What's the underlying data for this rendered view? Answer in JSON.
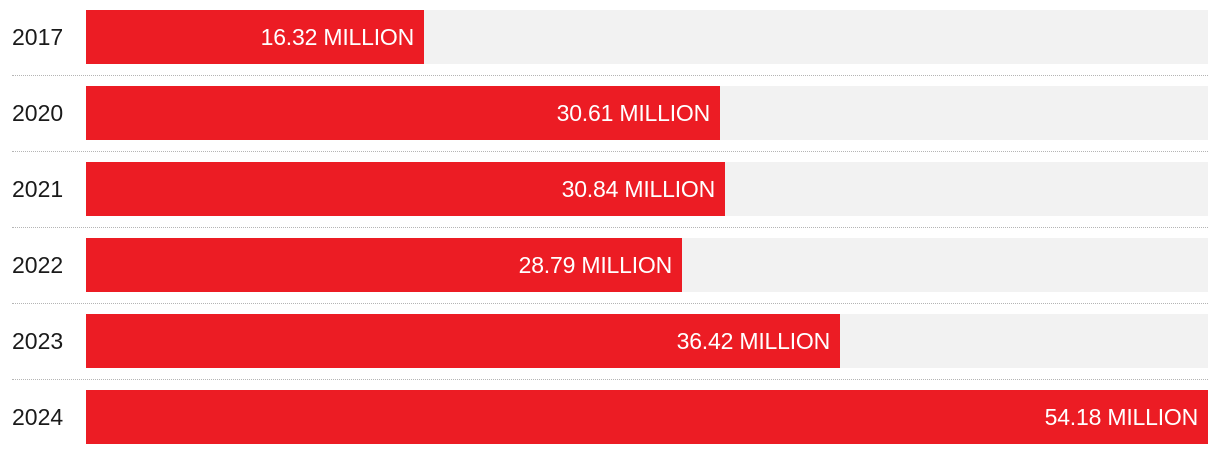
{
  "colors": {
    "bar": "#ec1c24",
    "track": "#f2f2f2",
    "label": "#1a1a1a",
    "bar_text": "#ffffff"
  },
  "chart_data": {
    "type": "bar",
    "orientation": "horizontal",
    "categories": [
      "2017",
      "2020",
      "2021",
      "2022",
      "2023",
      "2024"
    ],
    "values": [
      16.32,
      30.61,
      30.84,
      28.79,
      36.42,
      54.18
    ],
    "value_labels": [
      "16.32 MILLION",
      "30.61 MILLION",
      "30.84 MILLION",
      "28.79 MILLION",
      "36.42 MILLION",
      "54.18 MILLION"
    ],
    "xlim": [
      0,
      54.18
    ],
    "grid": false
  }
}
